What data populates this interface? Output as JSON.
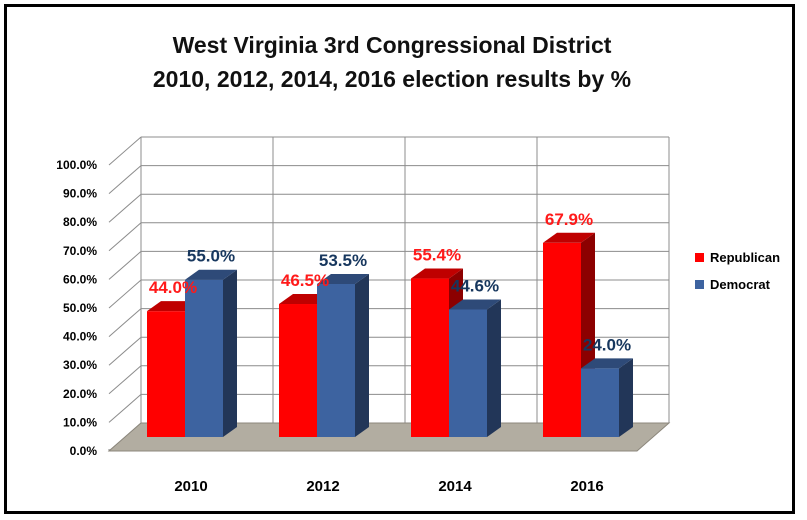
{
  "chart_data": {
    "type": "bar",
    "title": [
      "West Virginia 3rd Congressional District",
      "2010, 2012, 2014, 2016 election results by %"
    ],
    "categories": [
      "2010",
      "2012",
      "2014",
      "2016"
    ],
    "series": [
      {
        "name": "Republican",
        "color": "#ff0000",
        "label_color": "#ff1a1a",
        "values": [
          44.0,
          46.5,
          55.4,
          67.9
        ]
      },
      {
        "name": "Democrat",
        "color": "#3d63a0",
        "label_color": "#17375e",
        "values": [
          55.0,
          53.5,
          44.6,
          24.0
        ]
      }
    ],
    "ylim": [
      0,
      100
    ],
    "ytick_step": 10,
    "ytick_suffix": "%",
    "grid": true,
    "legend_position": "right",
    "style": "3d-clustered-column"
  }
}
